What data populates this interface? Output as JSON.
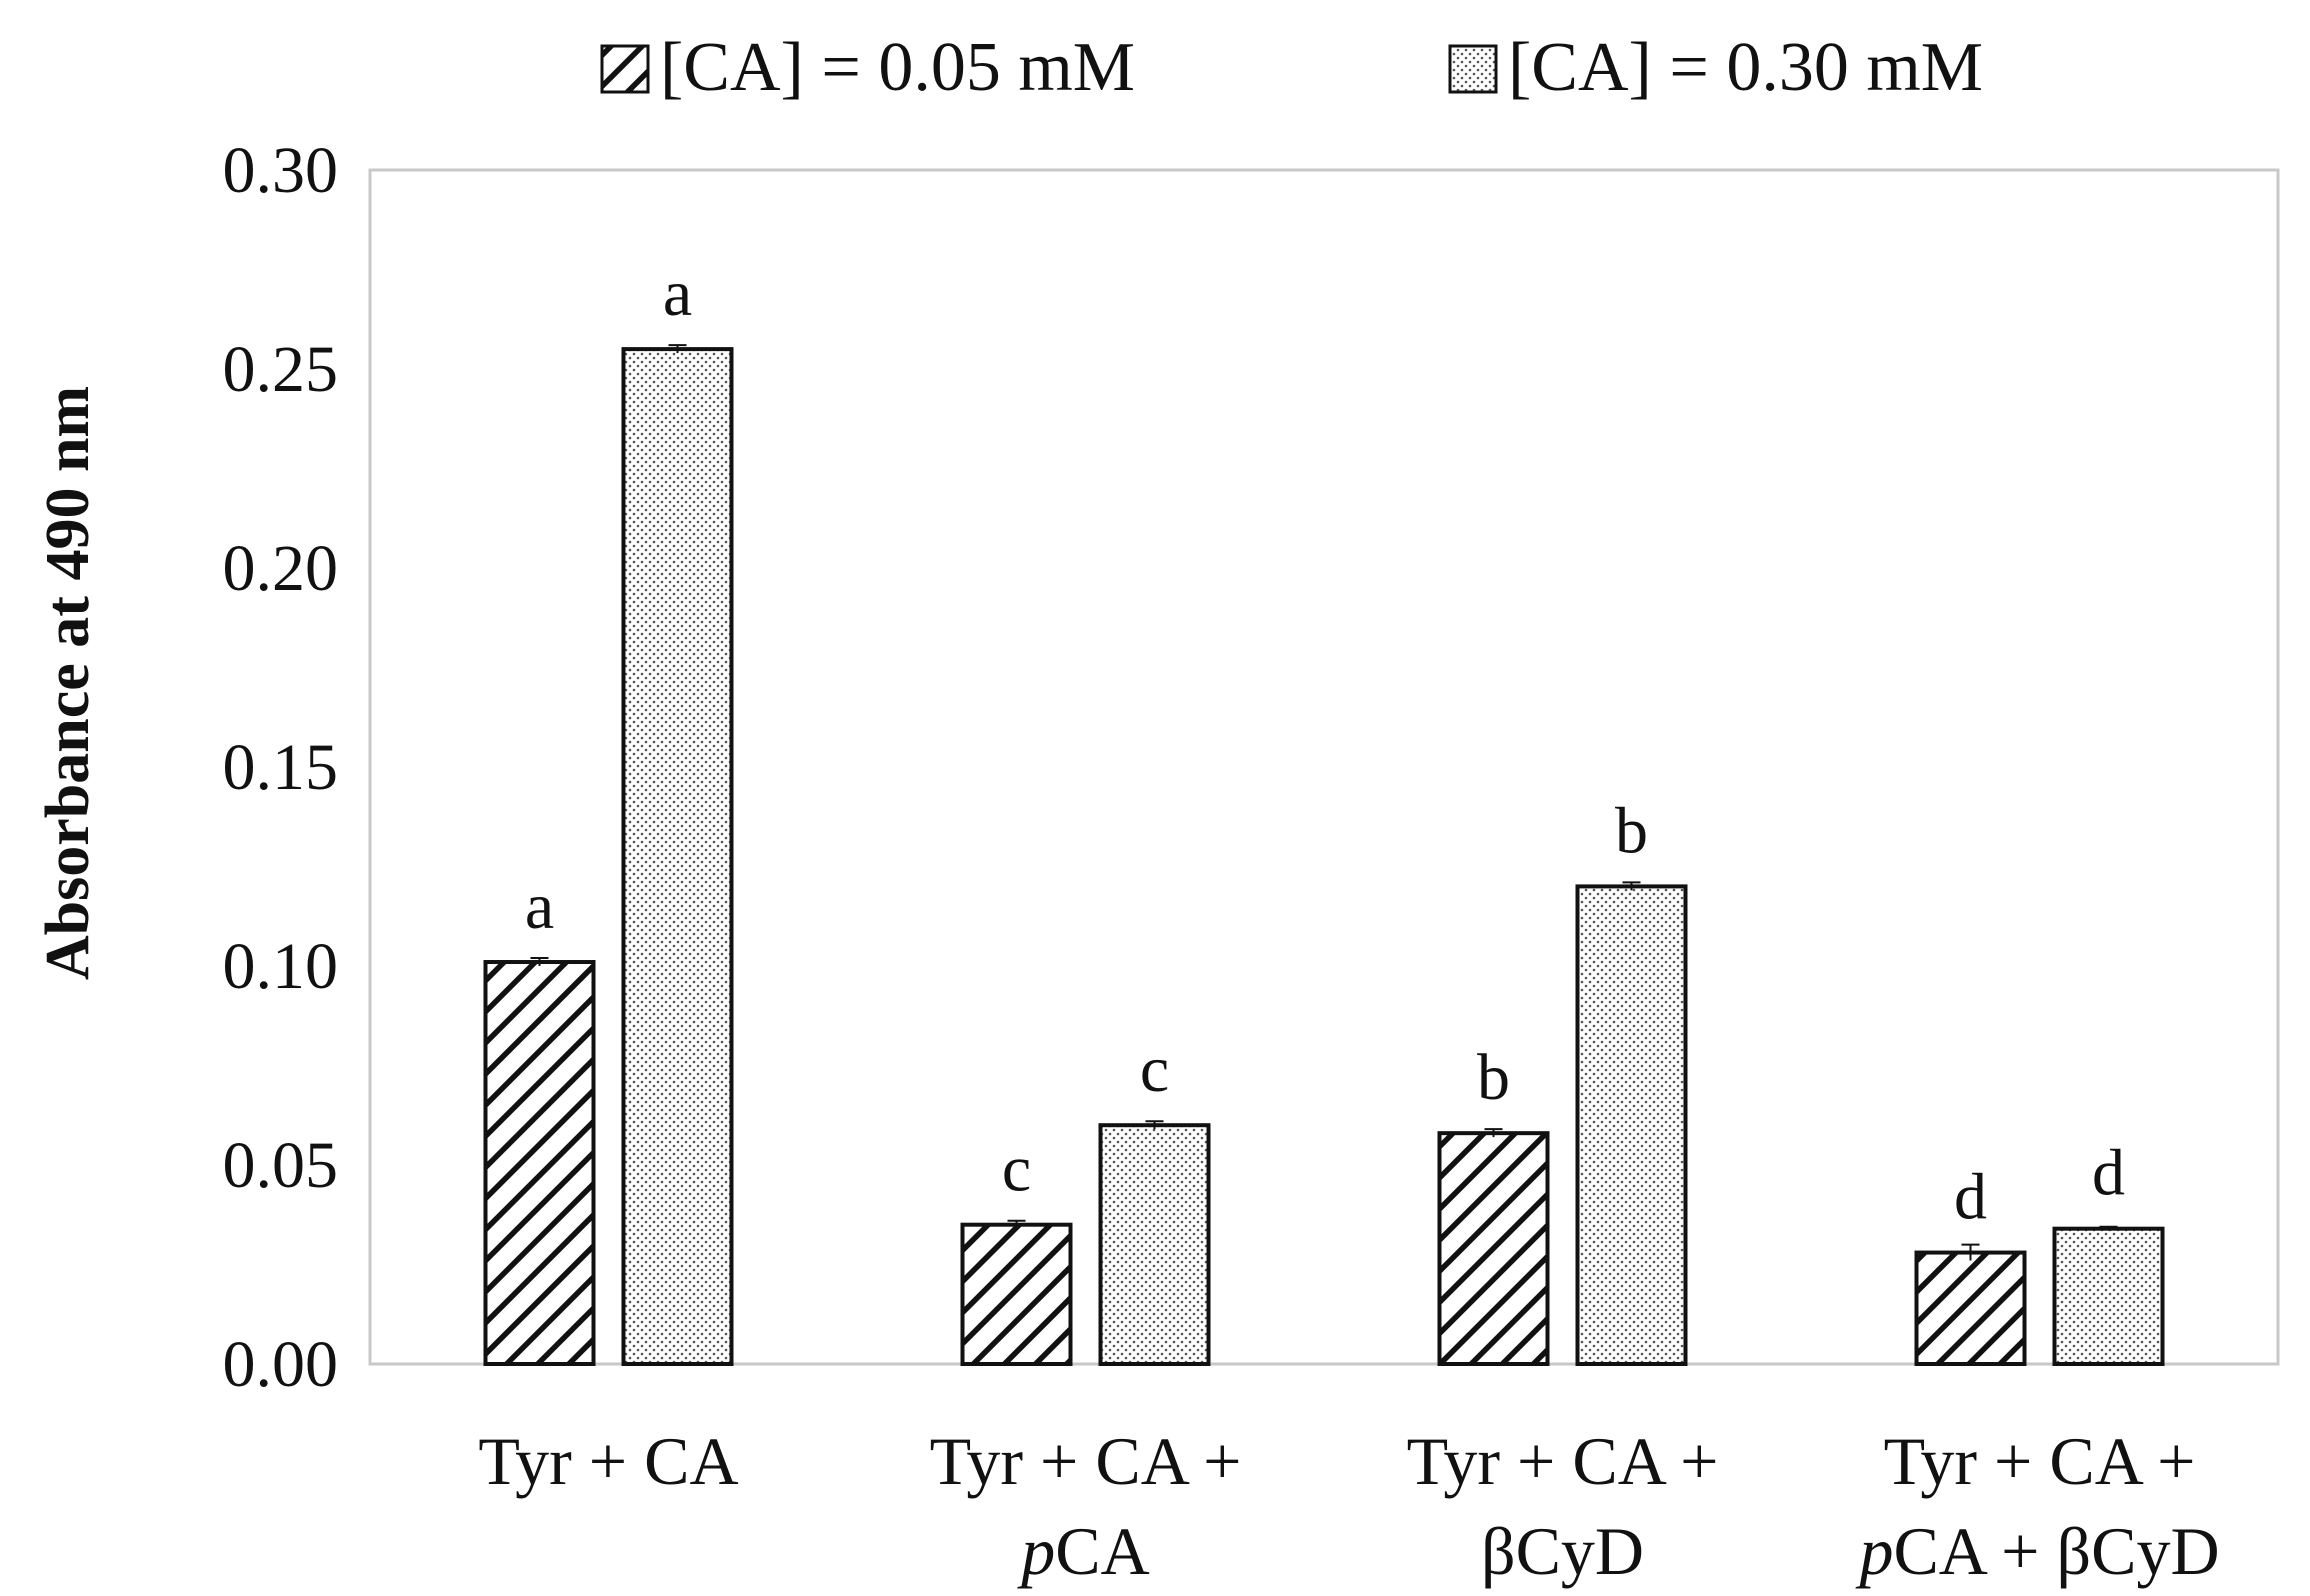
{
  "chart_data": {
    "type": "bar",
    "title": "",
    "xlabel": "",
    "ylabel": "Absorbance at 490 nm",
    "ylim": [
      0,
      0.3
    ],
    "yticks": [
      "0.00",
      "0.05",
      "0.10",
      "0.15",
      "0.20",
      "0.25",
      "0.30"
    ],
    "grid": false,
    "legend_position": "top",
    "categories": [
      {
        "line1": "Tyr + CA",
        "line2_italic": "",
        "line2_rest": ""
      },
      {
        "line1": "Tyr + CA +",
        "line2_italic": "p",
        "line2_rest": "CA"
      },
      {
        "line1": "Tyr + CA +",
        "line2_italic": "",
        "line2_rest": "βCyD"
      },
      {
        "line1": "Tyr + CA +",
        "line2_italic": "p",
        "line2_rest": "CA + βCyD"
      }
    ],
    "series": [
      {
        "name": "[CA] = 0.05 mM",
        "pattern": "diagonal-hatch",
        "values": [
          0.101,
          0.035,
          0.058,
          0.028
        ],
        "errors": [
          0.001,
          0.001,
          0.001,
          0.002
        ],
        "labels": [
          "a",
          "c",
          "b",
          "d"
        ]
      },
      {
        "name": "[CA] = 0.30 mM",
        "pattern": "dotted",
        "values": [
          0.255,
          0.06,
          0.12,
          0.034
        ],
        "errors": [
          0.001,
          0.001,
          0.001,
          0.0005
        ],
        "labels": [
          "a",
          "c",
          "b",
          "d"
        ]
      }
    ]
  },
  "colors": {
    "bar_outline": "#111111",
    "hatch": "#111111",
    "dots": "#555555",
    "frame": "#c8c8c8",
    "background": "#ffffff"
  }
}
